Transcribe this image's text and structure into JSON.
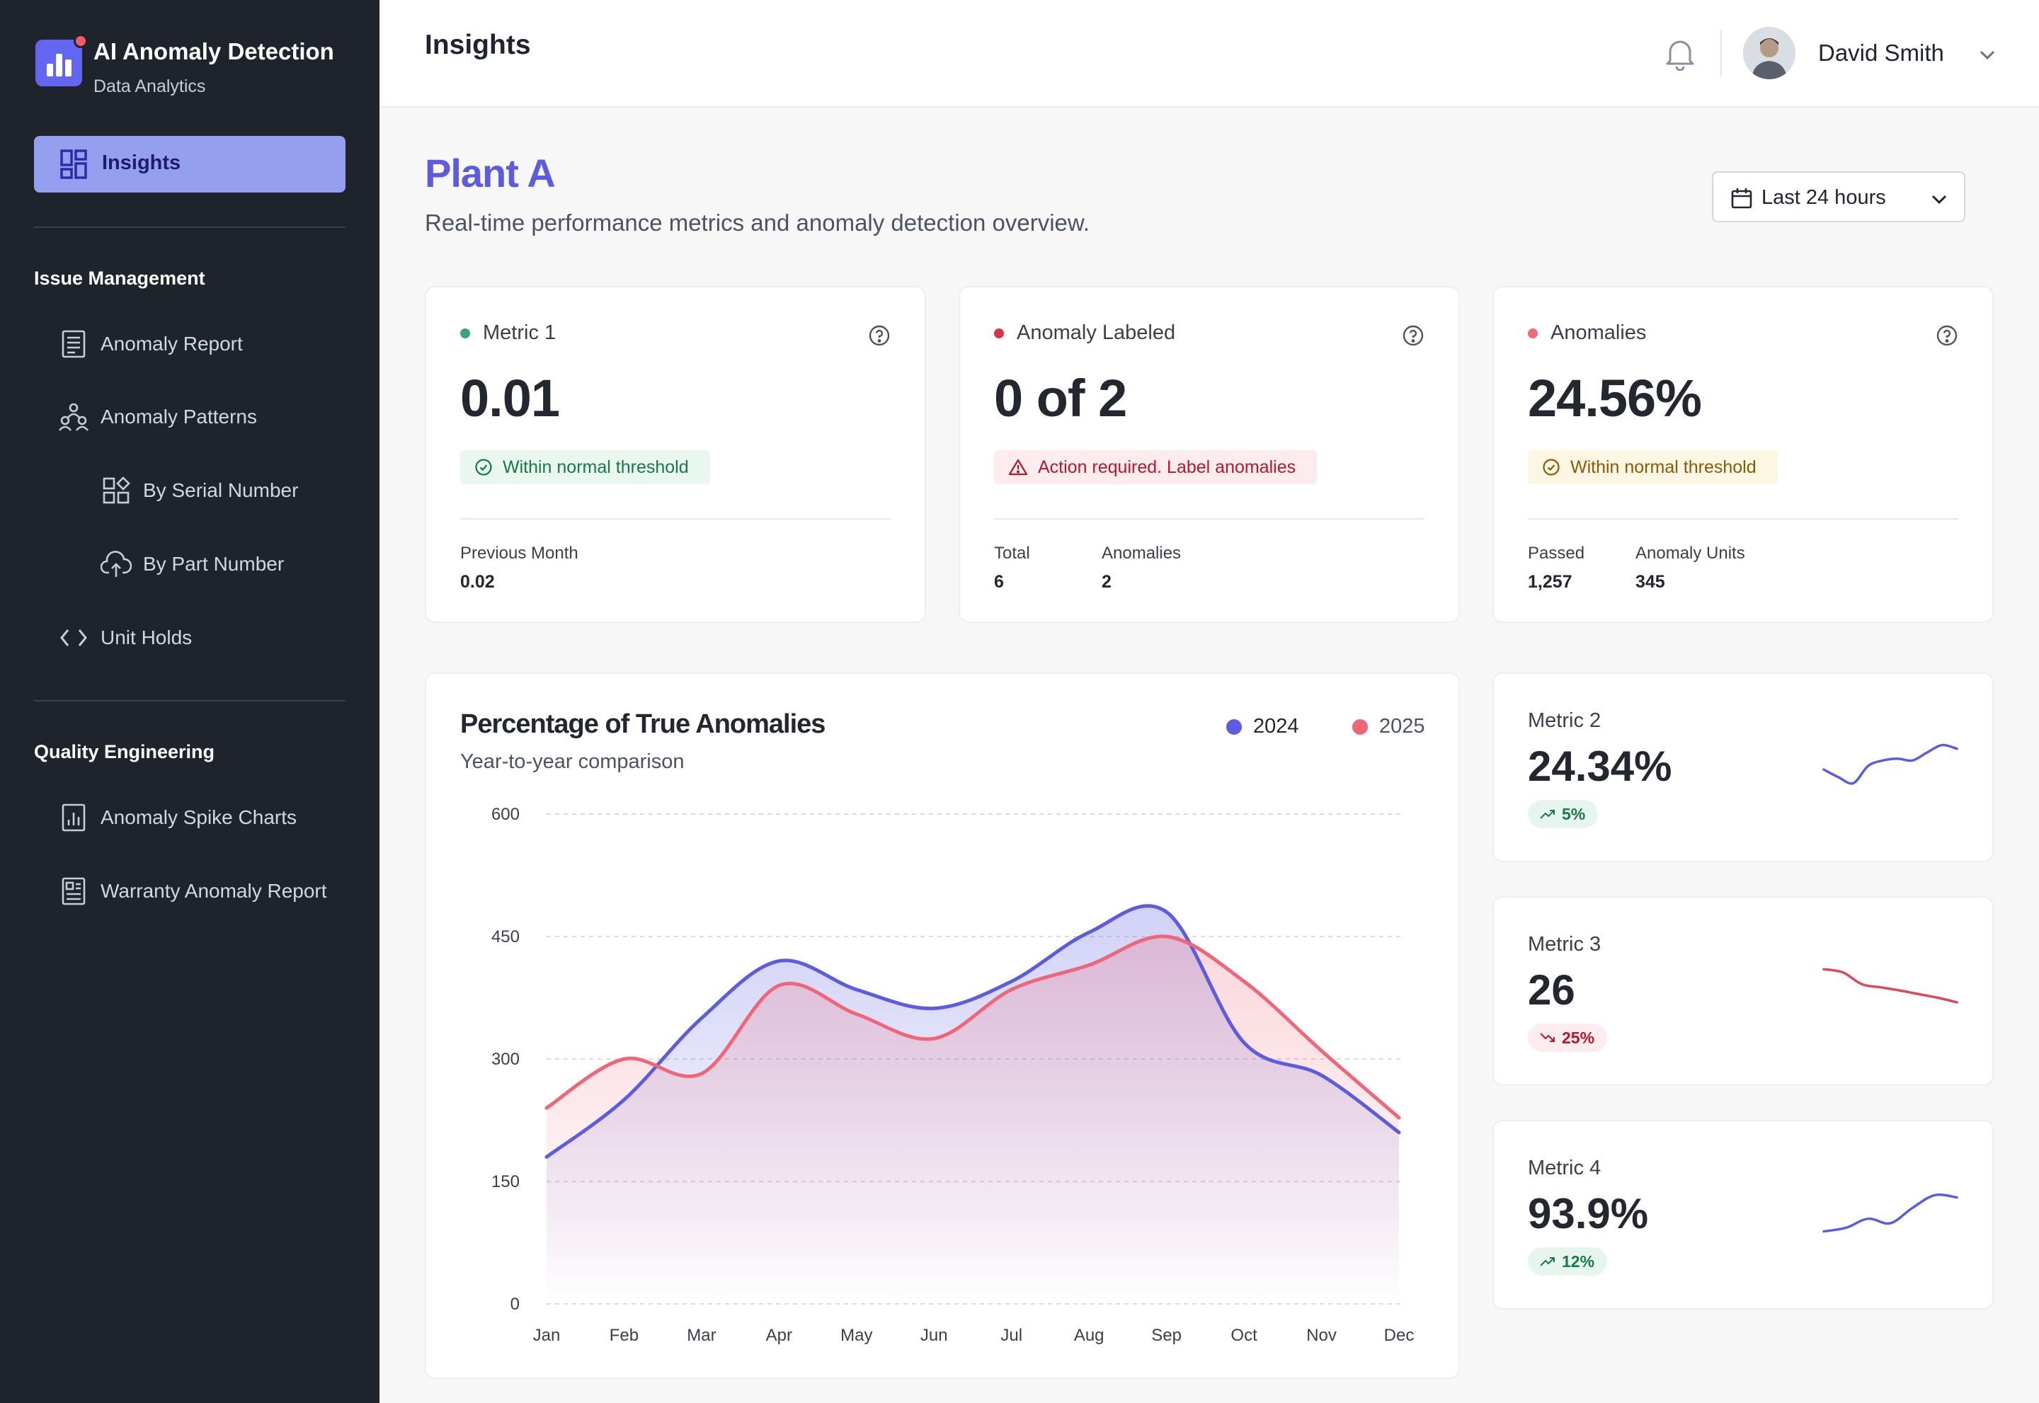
{
  "brand": {
    "title": "AI Anomaly Detection",
    "subtitle": "Data Analytics"
  },
  "nav": {
    "active": {
      "label": "Insights",
      "icon": "dashboard-icon"
    },
    "sections": [
      {
        "title": "Issue Management",
        "items": [
          {
            "label": "Anomaly Report",
            "icon": "report-icon"
          },
          {
            "label": "Anomaly Patterns",
            "icon": "patterns-icon"
          },
          {
            "label": "By Serial Number",
            "icon": "serial-number-icon"
          },
          {
            "label": "By Part Number",
            "icon": "part-number-icon"
          },
          {
            "label": "Unit Holds",
            "icon": "code-icon"
          }
        ]
      },
      {
        "title": "Quality Engineering",
        "items": [
          {
            "label": "Anomaly Spike Charts",
            "icon": "bar-chart-icon"
          },
          {
            "label": "Warranty Anomaly Report",
            "icon": "report-icon"
          }
        ]
      }
    ]
  },
  "header": {
    "title": "Insights",
    "user_name": "David Smith"
  },
  "page": {
    "title": "Plant A",
    "subtitle": "Real-time performance metrics and anomaly detection overview.",
    "time_range": "Last 24 hours"
  },
  "kpis": [
    {
      "name": "Metric 1",
      "value": "0.01",
      "dot_color": "#3aa57a",
      "badge": "Within normal threshold",
      "badge_kind": "ok",
      "stats": [
        {
          "label": "Previous Month",
          "value": "0.02"
        }
      ]
    },
    {
      "name": "Anomaly Labeled",
      "value": "0 of 2",
      "dot_color": "#d93346",
      "badge": "Action required. Label anomalies",
      "badge_kind": "alert",
      "stats": [
        {
          "label": "Total",
          "value": "6"
        },
        {
          "label": "Anomalies",
          "value": "2"
        }
      ]
    },
    {
      "name": "Anomalies",
      "value": "24.56%",
      "dot_color": "#ef6b73",
      "badge": "Within normal threshold",
      "badge_kind": "warn",
      "stats": [
        {
          "label": "Passed",
          "value": "1,257"
        },
        {
          "label": "Anomaly Units",
          "value": "345"
        }
      ]
    }
  ],
  "metrics": [
    {
      "name": "Metric 2",
      "value": "24.34%",
      "delta": "5%",
      "trend": "up",
      "spark_color": "#5b5ce0",
      "spark": [
        0.42,
        0.25,
        0.12,
        0.5,
        0.62,
        0.66,
        0.62,
        0.8,
        0.96,
        0.88
      ]
    },
    {
      "name": "Metric 3",
      "value": "26",
      "delta": "25%",
      "trend": "down",
      "spark_color": "#e0455a",
      "spark": [
        0.95,
        0.88,
        0.62,
        0.55,
        0.48,
        0.4,
        0.32,
        0.22
      ]
    },
    {
      "name": "Metric 4",
      "value": "93.9%",
      "delta": "12%",
      "trend": "up",
      "spark_color": "#5b5ce0",
      "spark": [
        0.1,
        0.18,
        0.38,
        0.28,
        0.62,
        0.9,
        0.85
      ]
    }
  ],
  "chart_data": {
    "type": "area",
    "title": "Percentage of True Anomalies",
    "subtitle": "Year-to-year comparison",
    "categories": [
      "Jan",
      "Feb",
      "Mar",
      "Apr",
      "May",
      "Jun",
      "Jul",
      "Aug",
      "Sep",
      "Oct",
      "Nov",
      "Dec"
    ],
    "ylim": [
      0,
      600
    ],
    "yticks": [
      0,
      150,
      300,
      450,
      600
    ],
    "grid": true,
    "legend_position": "top-right",
    "series": [
      {
        "name": "2024",
        "color": "#5b5ce0",
        "values": [
          180,
          250,
          350,
          420,
          385,
          362,
          395,
          455,
          480,
          320,
          280,
          210
        ]
      },
      {
        "name": "2025",
        "color": "#ee6677",
        "values": [
          240,
          300,
          282,
          390,
          355,
          325,
          385,
          415,
          450,
          395,
          310,
          228
        ]
      }
    ]
  }
}
